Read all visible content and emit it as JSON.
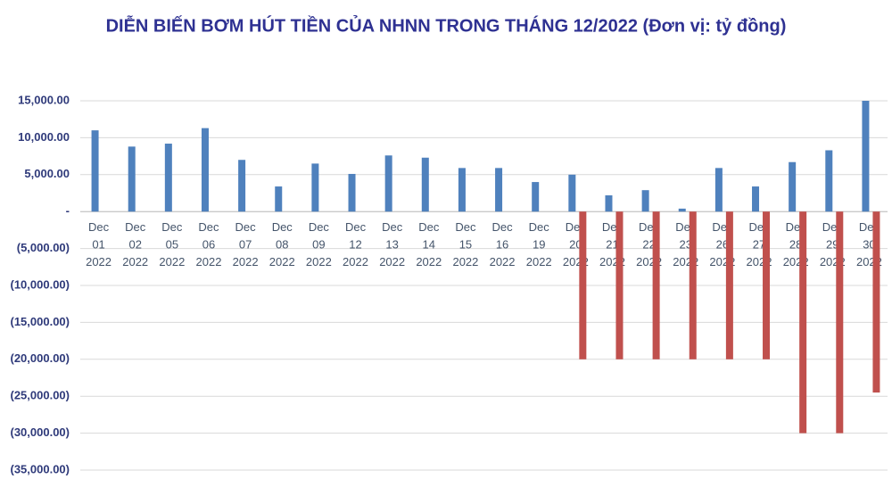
{
  "chart_data": {
    "type": "bar",
    "title": "DIỄN BIẾN BƠM HÚT TIỀN CỦA NHNN TRONG THÁNG 12/2022 (Đơn vị: tỷ đồng)",
    "categories": [
      "Dec 01 2022",
      "Dec 02 2022",
      "Dec 05 2022",
      "Dec 06 2022",
      "Dec 07 2022",
      "Dec 08 2022",
      "Dec 09 2022",
      "Dec 12 2022",
      "Dec 13 2022",
      "Dec 14 2022",
      "Dec 15 2022",
      "Dec 16 2022",
      "Dec 19 2022",
      "Dec 20 2022",
      "Dec 21 2022",
      "Dec 22 2022",
      "Dec 23 2022",
      "Dec 26 2022",
      "Dec 27 2022",
      "Dec 28 2022",
      "Dec 29 2022",
      "Dec 30 2022"
    ],
    "series": [
      {
        "color": "#4f81bd",
        "values": [
          11000,
          8800,
          9200,
          11300,
          7000,
          3400,
          6500,
          5100,
          7600,
          7300,
          5900,
          5900,
          4000,
          5000,
          2200,
          2900,
          400,
          5900,
          3400,
          6700,
          8300,
          15000
        ]
      },
      {
        "color": "#c0504d",
        "values": [
          null,
          null,
          null,
          null,
          null,
          null,
          null,
          null,
          null,
          null,
          null,
          null,
          null,
          -20000,
          -20000,
          -20000,
          -20000,
          -20000,
          -20000,
          -30000,
          -30000,
          -24500
        ]
      }
    ],
    "ylim": [
      -35000,
      15000
    ],
    "yticks": [
      {
        "value": 15000,
        "label": "15,000.00"
      },
      {
        "value": 10000,
        "label": "10,000.00"
      },
      {
        "value": 5000,
        "label": "5,000.00"
      },
      {
        "value": 0,
        "label": "-"
      },
      {
        "value": -5000,
        "label": "(5,000.00)"
      },
      {
        "value": -10000,
        "label": "(10,000.00)"
      },
      {
        "value": -15000,
        "label": "(15,000.00)"
      },
      {
        "value": -20000,
        "label": "(20,000.00)"
      },
      {
        "value": -25000,
        "label": "(25,000.00)"
      },
      {
        "value": -30000,
        "label": "(30,000.00)"
      },
      {
        "value": -35000,
        "label": "(35,000.00)"
      }
    ],
    "grid": true
  }
}
